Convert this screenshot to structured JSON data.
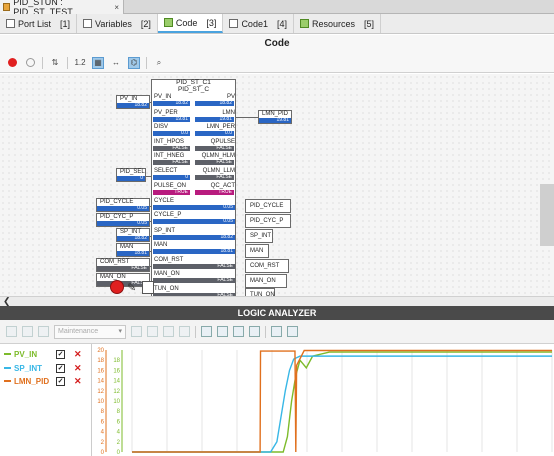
{
  "doc_tab": {
    "title": "PID_STUN : PID_ST_TEST",
    "close": "×"
  },
  "view_tabs": [
    {
      "label": "Port List",
      "num": "[1]"
    },
    {
      "label": "Variables",
      "num": "[2]"
    },
    {
      "label": "Code",
      "num": "[3]"
    },
    {
      "label": "Code1",
      "num": "[4]"
    },
    {
      "label": "Resources",
      "num": "[5]"
    }
  ],
  "code": {
    "title": "Code",
    "toolbar_labels": {
      "step": "1.2"
    }
  },
  "fb": {
    "instance": "PID_ST_C1",
    "type": "PID_ST_C",
    "pins": [
      {
        "left": "PV_IN",
        "right": "PV",
        "value": "18.82",
        "color": "blue"
      },
      {
        "left": "PV_PER",
        "right": "LMN",
        "value": "19.81",
        "color": "blue"
      },
      {
        "left": "DISV",
        "right": "LMN_PER",
        "value": "0.0",
        "color": "blue"
      },
      {
        "left": "INT_HPOS",
        "right": "QPULSE",
        "value": "FALSE",
        "color": "grey"
      },
      {
        "left": "INT_HNEG",
        "right": "QLMN_HLM",
        "value": "FALSE",
        "color": "grey"
      },
      {
        "left": "SELECT",
        "right": "QLMN_LLM",
        "value": "0",
        "color": "blue"
      },
      {
        "left": "PULSE_ON",
        "right": "QC_ACT",
        "value": "TRUE",
        "color": "mag"
      },
      {
        "left": "CYCLE",
        "right": "",
        "value": "0.05",
        "color": "blue"
      },
      {
        "left": "CYCLE_P",
        "right": "",
        "value": "0.05",
        "color": "blue"
      },
      {
        "left": "SP_INT",
        "right": "",
        "value": "18.82",
        "color": "blue"
      },
      {
        "left": "MAN",
        "right": "",
        "value": "18.81",
        "color": "blue"
      },
      {
        "left": "COM_RST",
        "right": "",
        "value": "FALSE",
        "color": "grey"
      },
      {
        "left": "MAN_ON",
        "right": "",
        "value": "FALSE",
        "color": "grey"
      },
      {
        "left": "TUN_ON",
        "right": "",
        "value": "FALSE",
        "color": "grey"
      }
    ],
    "right_values": [
      "18.82",
      "19.81",
      "0.0",
      "FALSE",
      "FALSE",
      "FALSE",
      "TRUE"
    ]
  },
  "inputs": [
    {
      "name": "PV_IN",
      "value": "18.82",
      "color": "blue"
    },
    {
      "name": "PID_SEL",
      "value": "0",
      "color": "blue"
    },
    {
      "name": "PID_CYCLE",
      "value": "0.05",
      "color": "blue"
    },
    {
      "name": "PID_CYC_P",
      "value": "0.05",
      "color": "blue"
    },
    {
      "name": "SP_INT",
      "value": "18.82",
      "color": "blue"
    },
    {
      "name": "MAN",
      "value": "18.81",
      "color": "blue"
    },
    {
      "name": "COM_RST",
      "value": "FALSE",
      "color": "grey"
    },
    {
      "name": "MAN_ON",
      "value": "FALSE",
      "color": "grey"
    }
  ],
  "outputs": [
    {
      "name": "LMN_PID",
      "value": "19.81",
      "color": "blue"
    },
    {
      "name": "PID_CYCLE"
    },
    {
      "name": "PID_CYC_P"
    },
    {
      "name": "SP_INT"
    },
    {
      "name": "MAN"
    },
    {
      "name": "COM_RST"
    },
    {
      "name": "MAN_ON"
    },
    {
      "name": "TUN_ON"
    }
  ],
  "logic_analyzer": {
    "title": "LOGIC ANALYZER",
    "mode": "Maintenance",
    "signals": [
      {
        "name": "PV_IN",
        "color": "#7dbb2b",
        "checked": true
      },
      {
        "name": "SP_INT",
        "color": "#38b7e6",
        "checked": true
      },
      {
        "name": "LMN_PID",
        "color": "#e0701e",
        "checked": true
      }
    ]
  },
  "chart_data": {
    "type": "line",
    "y_axes": [
      {
        "color": "#e0701e",
        "ticks": [
          20,
          18,
          16,
          14,
          12,
          10,
          8,
          6,
          4,
          2,
          0
        ]
      },
      {
        "color": "#7dbb2b",
        "ticks": [
          18,
          16,
          14,
          12,
          10,
          8,
          6,
          4,
          2,
          0
        ]
      }
    ],
    "ylim": [
      0,
      20
    ],
    "grid": "vertical",
    "series": [
      {
        "name": "PV_IN",
        "color": "#7dbb2b",
        "points": [
          [
            0,
            0
          ],
          [
            0.36,
            0
          ],
          [
            0.37,
            3
          ],
          [
            0.38,
            10
          ],
          [
            0.39,
            15
          ],
          [
            0.4,
            18
          ],
          [
            0.415,
            16.5
          ],
          [
            0.43,
            18.8
          ],
          [
            0.47,
            19.6
          ],
          [
            1,
            19.6
          ]
        ]
      },
      {
        "name": "SP_INT",
        "color": "#38b7e6",
        "points": [
          [
            0,
            0
          ],
          [
            0.33,
            0
          ],
          [
            0.345,
            2
          ],
          [
            0.355,
            7
          ],
          [
            0.365,
            12
          ],
          [
            0.375,
            16
          ],
          [
            0.385,
            18.2
          ],
          [
            0.4,
            18.8
          ],
          [
            1,
            18.8
          ]
        ]
      },
      {
        "name": "LMN_PID",
        "color": "#e0701e",
        "points": [
          [
            0,
            0
          ],
          [
            0.305,
            0
          ],
          [
            0.306,
            19.8
          ],
          [
            0.388,
            19.8
          ],
          [
            0.39,
            0
          ],
          [
            0.392,
            17
          ],
          [
            0.41,
            19.9
          ],
          [
            1,
            19.9
          ]
        ]
      }
    ]
  }
}
